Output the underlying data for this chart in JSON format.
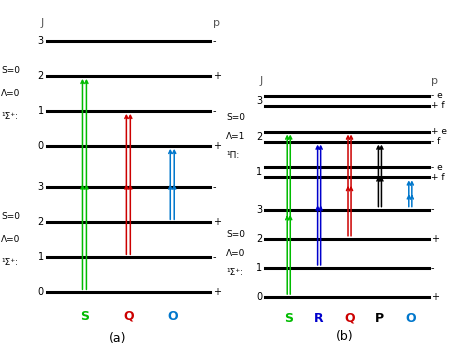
{
  "fig_width": 4.57,
  "fig_height": 3.46,
  "dpi": 100,
  "bg_color": "#ffffff",
  "panel_a": {
    "label": "(a)",
    "upper_state_label": [
      "¹Σ⁺:",
      "Λ=0",
      "S=0"
    ],
    "lower_state_label": [
      "¹Σ⁺:",
      "Λ=0",
      "S=0"
    ],
    "upper_parity": [
      "+",
      "-",
      "+",
      "-"
    ],
    "lower_parity": [
      "+",
      "-",
      "+",
      "-"
    ],
    "transitions": [
      {
        "name": "S",
        "color": "#00bb00",
        "lower_J": 0,
        "upper_J": 2
      },
      {
        "name": "Q",
        "color": "#cc0000",
        "lower_J": 1,
        "upper_J": 1
      },
      {
        "name": "O",
        "color": "#0077cc",
        "lower_J": 2,
        "upper_J": 0
      }
    ],
    "branch_colors": {
      "S": "#00bb00",
      "Q": "#cc0000",
      "O": "#0077cc"
    }
  },
  "panel_b": {
    "label": "(b)",
    "upper_state_label": [
      "¹Π:",
      "Λ=1",
      "S=0"
    ],
    "lower_state_label": [
      "¹Σ⁺:",
      "Λ=0",
      "S=0"
    ],
    "upper_parity_e": [
      "-e",
      "+e",
      "-e"
    ],
    "upper_parity_f": [
      "+f",
      "-f",
      "+f"
    ],
    "lower_parity": [
      "+",
      "-",
      "+",
      "-"
    ],
    "transitions": [
      {
        "name": "S",
        "color": "#00bb00",
        "lower_J": 0,
        "upper_J": 2,
        "ef": "e"
      },
      {
        "name": "R",
        "color": "#0000cc",
        "lower_J": 1,
        "upper_J": 2,
        "ef": "f"
      },
      {
        "name": "Q",
        "color": "#cc0000",
        "lower_J": 2,
        "upper_J": 2,
        "ef": "e"
      },
      {
        "name": "P",
        "color": "#000000",
        "lower_J": 3,
        "upper_J": 2,
        "ef": "f"
      },
      {
        "name": "O",
        "color": "#0077cc",
        "lower_J": 3,
        "upper_J": 1,
        "ef": "f"
      }
    ],
    "branch_colors": {
      "S": "#00bb00",
      "R": "#0000cc",
      "Q": "#cc0000",
      "P": "#000000",
      "O": "#0077cc"
    }
  }
}
